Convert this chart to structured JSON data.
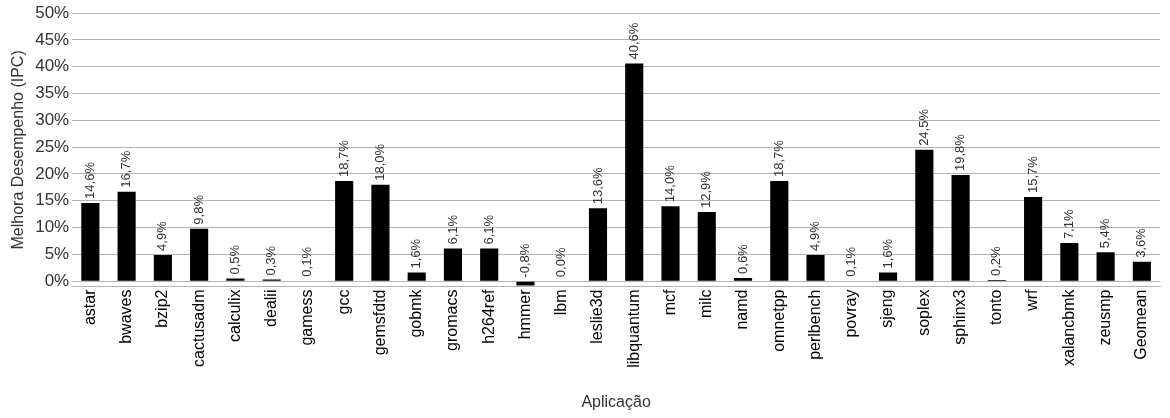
{
  "chart_data": {
    "type": "bar",
    "xlabel": "Aplicação",
    "ylabel": "Melhora Desempenho (IPC)",
    "categories": [
      "astar",
      "bwaves",
      "bzip2",
      "cactusadm",
      "calculix",
      "dealii",
      "gamess",
      "gcc",
      "gemsfdtd",
      "gobmk",
      "gromacs",
      "h264ref",
      "hmmer",
      "lbm",
      "leslie3d",
      "libquantum",
      "mcf",
      "milc",
      "namd",
      "omnetpp",
      "perlbench",
      "povray",
      "sjeng",
      "soplex",
      "sphinx3",
      "tonto",
      "wrf",
      "xalancbmk",
      "zeusmp",
      "Geomean"
    ],
    "values": [
      14.6,
      16.7,
      4.9,
      9.8,
      0.5,
      0.3,
      0.1,
      18.7,
      18.0,
      1.6,
      6.1,
      6.1,
      -0.8,
      0.0,
      13.6,
      40.6,
      14.0,
      12.9,
      0.6,
      18.7,
      4.9,
      0.1,
      1.6,
      24.5,
      19.8,
      0.2,
      15.7,
      7.1,
      5.4,
      3.6
    ],
    "value_labels": [
      "14,6%",
      "16,7%",
      "4,9%",
      "9,8%",
      "0,5%",
      "0,3%",
      "0,1%",
      "18,7%",
      "18,0%",
      "1,6%",
      "6,1%",
      "6,1%",
      "-0,8%",
      "0,0%",
      "13,6%",
      "40,6%",
      "14,0%",
      "12,9%",
      "0,6%",
      "18,7%",
      "4,9%",
      "0,1%",
      "1,6%",
      "24,5%",
      "19,8%",
      "0,2%",
      "15,7%",
      "7,1%",
      "5,4%",
      "3,6%"
    ],
    "color": "#000000",
    "ylim": [
      -1,
      50
    ],
    "yticks": [
      {
        "value": 0,
        "label": "0%"
      },
      {
        "value": 5,
        "label": "5%"
      },
      {
        "value": 10,
        "label": "10%"
      },
      {
        "value": 15,
        "label": "15%"
      },
      {
        "value": 20,
        "label": "20%"
      },
      {
        "value": 25,
        "label": "25%"
      },
      {
        "value": 30,
        "label": "30%"
      },
      {
        "value": 35,
        "label": "35%"
      },
      {
        "value": 40,
        "label": "40%"
      },
      {
        "value": 45,
        "label": "45%"
      },
      {
        "value": 50,
        "label": "50%"
      }
    ],
    "grid": "y",
    "legend": false
  }
}
